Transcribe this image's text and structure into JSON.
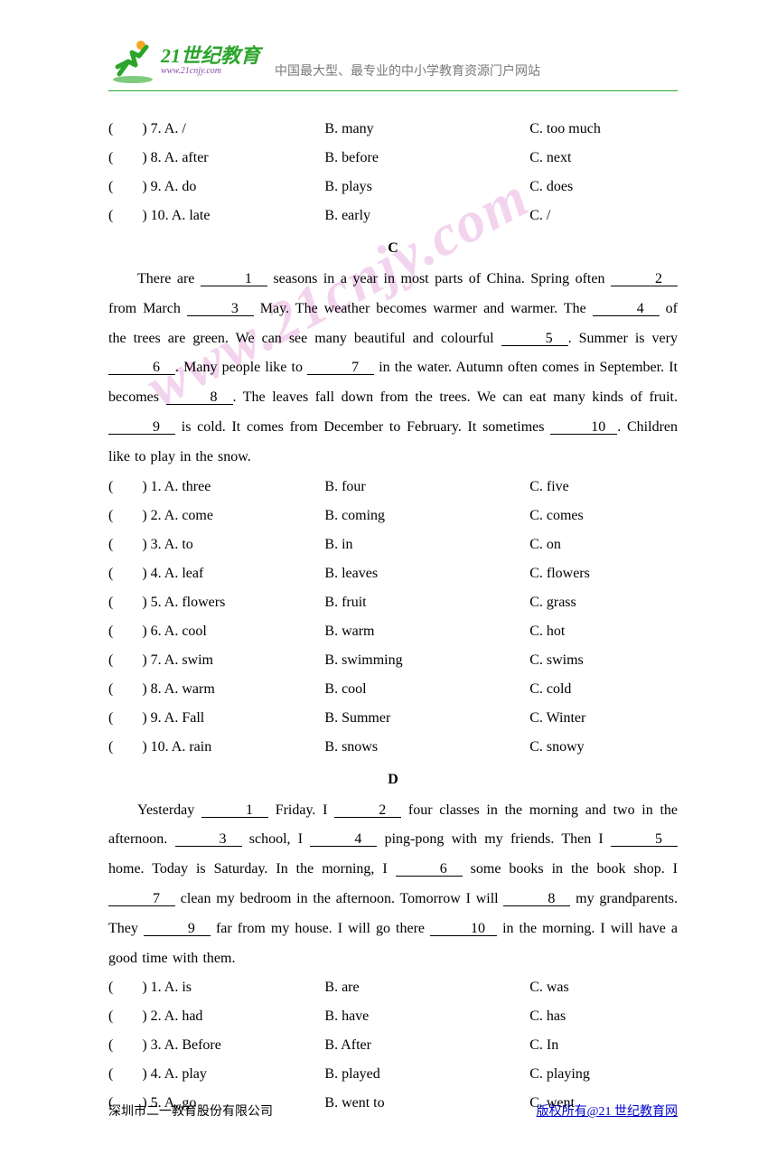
{
  "header": {
    "logo_main": "21世纪教育",
    "logo_url": "www.21cnjy.com",
    "subtitle": "中国最大型、最专业的中小学教育资源门户网站"
  },
  "watermark": "www.21cnjy.com",
  "top_options": [
    {
      "q": "(　　) 7. A. /",
      "b": "B. many",
      "c": "C. too much"
    },
    {
      "q": "(　　) 8. A. after",
      "b": "B. before",
      "c": "C. next"
    },
    {
      "q": "(　　) 9. A. do",
      "b": "B. plays",
      "c": "C. does"
    },
    {
      "q": "(　　) 10. A. late",
      "b": "B. early",
      "c": "C. /"
    }
  ],
  "section_c": {
    "label": "C",
    "text_parts": [
      "There are ",
      "1",
      " seasons in a year in most parts of China. Spring often ",
      "2",
      " from March ",
      "3",
      " May. The weather becomes warmer and warmer. The ",
      "4",
      " of the trees are green. We can see many beautiful and colourful ",
      "5",
      ". Summer is very ",
      "6",
      ". Many people like to ",
      "7",
      " in the water. Autumn often comes in September. It becomes ",
      "8",
      ". The leaves fall down from the trees. We can eat many kinds of fruit. ",
      "9",
      " is cold. It comes from December to February. It sometimes ",
      "10",
      ". Children like to play in the snow."
    ],
    "options": [
      {
        "q": "(　　) 1. A. three",
        "b": "B. four",
        "c": "C. five"
      },
      {
        "q": "(　　) 2. A. come",
        "b": "B. coming",
        "c": "C. comes"
      },
      {
        "q": "(　　) 3. A. to",
        "b": "B. in",
        "c": "C. on"
      },
      {
        "q": "(　　) 4. A. leaf",
        "b": "B. leaves",
        "c": "C. flowers"
      },
      {
        "q": "(　　) 5. A. flowers",
        "b": "B. fruit",
        "c": "C. grass"
      },
      {
        "q": "(　　) 6. A. cool",
        "b": "B. warm",
        "c": "C. hot"
      },
      {
        "q": "(　　) 7. A. swim",
        "b": "B. swimming",
        "c": "C. swims"
      },
      {
        "q": "(　　) 8. A. warm",
        "b": "B. cool",
        "c": "C. cold"
      },
      {
        "q": "(　　) 9. A. Fall",
        "b": "B. Summer",
        "c": "C. Winter"
      },
      {
        "q": "(　　) 10. A. rain",
        "b": "B. snows",
        "c": "C. snowy"
      }
    ]
  },
  "section_d": {
    "label": "D",
    "text_parts": [
      "Yesterday ",
      "1",
      " Friday. I ",
      "2",
      " four classes in the morning and two in the afternoon. ",
      "3",
      " school, I ",
      "4",
      " ping-pong with my friends. Then I ",
      "5",
      " home. Today is Saturday. In the morning, I ",
      "6",
      " some books in the book shop. I ",
      "7",
      " clean my bedroom in the afternoon. Tomorrow I will ",
      "8",
      " my grandparents. They ",
      "9",
      " far from my house. I will go there ",
      "10",
      " in the morning. I will have a good time with them."
    ],
    "options": [
      {
        "q": "(　　) 1. A. is",
        "b": "B. are",
        "c": "C. was"
      },
      {
        "q": "(　　) 2. A. had",
        "b": "B. have",
        "c": "C. has"
      },
      {
        "q": "(　　) 3. A. Before",
        "b": "B. After",
        "c": "C. In"
      },
      {
        "q": "(　　) 4. A. play",
        "b": "B. played",
        "c": "C. playing"
      },
      {
        "q": "(　　) 5. A. go",
        "b": "B. went to",
        "c": "C. went"
      }
    ]
  },
  "footer": {
    "left": "深圳市二一教育股份有限公司",
    "right": "版权所有@21 世纪教育网"
  }
}
